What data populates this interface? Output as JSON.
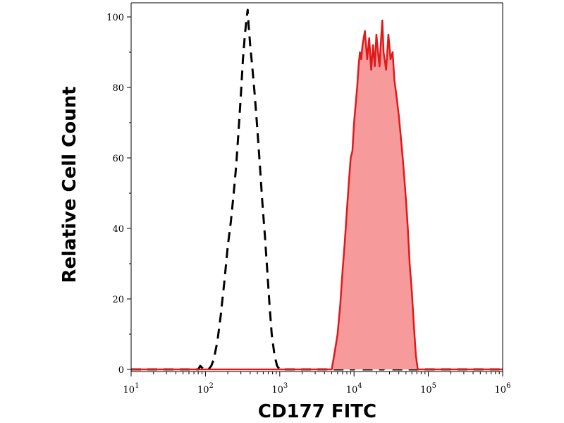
{
  "chart_data": {
    "type": "area",
    "title": "",
    "xlabel": "CD177 FITC",
    "ylabel": "Relative Cell Count",
    "xscale": "log",
    "xlim": [
      10,
      1000000
    ],
    "ylim": [
      0,
      100
    ],
    "grid": false,
    "legend": "none",
    "x_ticks": [
      {
        "base": "10",
        "exp": "1",
        "value": 10
      },
      {
        "base": "10",
        "exp": "2",
        "value": 100
      },
      {
        "base": "10",
        "exp": "3",
        "value": 1000
      },
      {
        "base": "10",
        "exp": "4",
        "value": 10000
      },
      {
        "base": "10",
        "exp": "5",
        "value": 100000
      },
      {
        "base": "10",
        "exp": "6",
        "value": 1000000
      }
    ],
    "y_ticks": [
      "0",
      "20",
      "40",
      "60",
      "80",
      "100"
    ],
    "series": [
      {
        "style": "dashed",
        "color": "#000000",
        "fill": "none",
        "points": [
          [
            10,
            0
          ],
          [
            80,
            0
          ],
          [
            85,
            1
          ],
          [
            95,
            0
          ],
          [
            110,
            0
          ],
          [
            120,
            1
          ],
          [
            130,
            3
          ],
          [
            145,
            8
          ],
          [
            160,
            15
          ],
          [
            180,
            25
          ],
          [
            200,
            35
          ],
          [
            220,
            42
          ],
          [
            240,
            50
          ],
          [
            260,
            58
          ],
          [
            280,
            68
          ],
          [
            300,
            78
          ],
          [
            320,
            88
          ],
          [
            340,
            95
          ],
          [
            360,
            100
          ],
          [
            370,
            102
          ],
          [
            380,
            98
          ],
          [
            400,
            92
          ],
          [
            430,
            85
          ],
          [
            460,
            78
          ],
          [
            500,
            68
          ],
          [
            540,
            58
          ],
          [
            580,
            48
          ],
          [
            630,
            38
          ],
          [
            680,
            28
          ],
          [
            730,
            18
          ],
          [
            780,
            10
          ],
          [
            850,
            4
          ],
          [
            920,
            1
          ],
          [
            1000,
            0
          ],
          [
            1200,
            0
          ],
          [
            3000,
            0
          ],
          [
            10000,
            0
          ],
          [
            11000,
            1
          ],
          [
            12000,
            0
          ],
          [
            25000,
            0
          ],
          [
            28000,
            1
          ],
          [
            32000,
            0
          ],
          [
            1000000,
            0
          ]
        ]
      },
      {
        "style": "solid",
        "color": "#e0191b",
        "fill": "#f79a9b",
        "points": [
          [
            10,
            0
          ],
          [
            4500,
            0
          ],
          [
            5000,
            0
          ],
          [
            5500,
            5
          ],
          [
            6000,
            10
          ],
          [
            6500,
            18
          ],
          [
            7000,
            28
          ],
          [
            7500,
            36
          ],
          [
            8000,
            45
          ],
          [
            8500,
            53
          ],
          [
            9000,
            60
          ],
          [
            9500,
            62
          ],
          [
            10000,
            70
          ],
          [
            10500,
            75
          ],
          [
            11000,
            80
          ],
          [
            11500,
            86
          ],
          [
            12000,
            90
          ],
          [
            12500,
            88
          ],
          [
            13000,
            92
          ],
          [
            14000,
            96
          ],
          [
            15000,
            88
          ],
          [
            16000,
            94
          ],
          [
            17000,
            85
          ],
          [
            18000,
            92
          ],
          [
            19000,
            86
          ],
          [
            20000,
            95
          ],
          [
            21000,
            90
          ],
          [
            22000,
            86
          ],
          [
            23000,
            93
          ],
          [
            24000,
            99
          ],
          [
            25000,
            90
          ],
          [
            27000,
            85
          ],
          [
            29000,
            95
          ],
          [
            31000,
            88
          ],
          [
            33000,
            90
          ],
          [
            35000,
            82
          ],
          [
            37000,
            78
          ],
          [
            40000,
            72
          ],
          [
            43000,
            65
          ],
          [
            46000,
            58
          ],
          [
            50000,
            48
          ],
          [
            53000,
            40
          ],
          [
            56000,
            30
          ],
          [
            60000,
            22
          ],
          [
            64000,
            12
          ],
          [
            68000,
            4
          ],
          [
            72000,
            0
          ],
          [
            100000,
            0
          ],
          [
            1000000,
            0
          ]
        ]
      }
    ]
  }
}
